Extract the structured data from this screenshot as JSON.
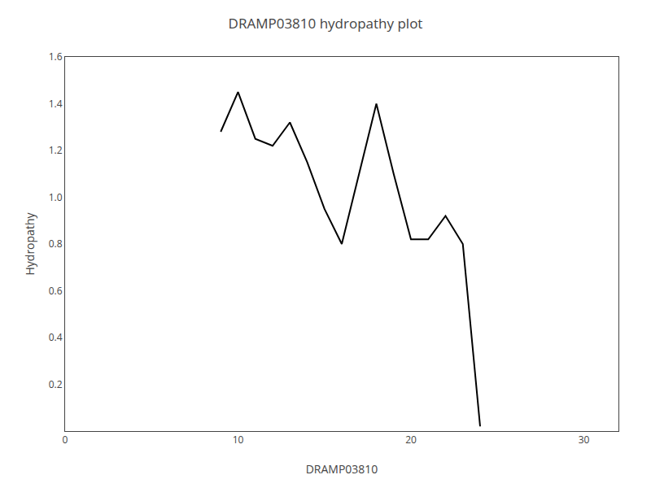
{
  "chart_data": {
    "type": "line",
    "title": "DRAMP03810 hydropathy plot",
    "xlabel": "DRAMP03810",
    "ylabel": "Hydropathy",
    "x": [
      9,
      10,
      11,
      12,
      13,
      14,
      15,
      16,
      17,
      18,
      19,
      20,
      21,
      22,
      23,
      24
    ],
    "values": [
      1.28,
      1.45,
      1.25,
      1.22,
      1.32,
      1.15,
      0.95,
      0.8,
      1.1,
      1.4,
      1.1,
      0.82,
      0.82,
      0.92,
      0.8,
      0.02
    ],
    "color": "#000000",
    "xlim": [
      0,
      32
    ],
    "xticks": [
      0,
      10,
      20,
      30
    ],
    "ylim": [
      0.0,
      1.6
    ],
    "yticks": [
      0.2,
      0.4,
      0.6,
      0.8,
      {
        "value": 1,
        "label": "1.0"
      },
      1.2,
      1.4,
      1.6
    ],
    "grid": false
  }
}
